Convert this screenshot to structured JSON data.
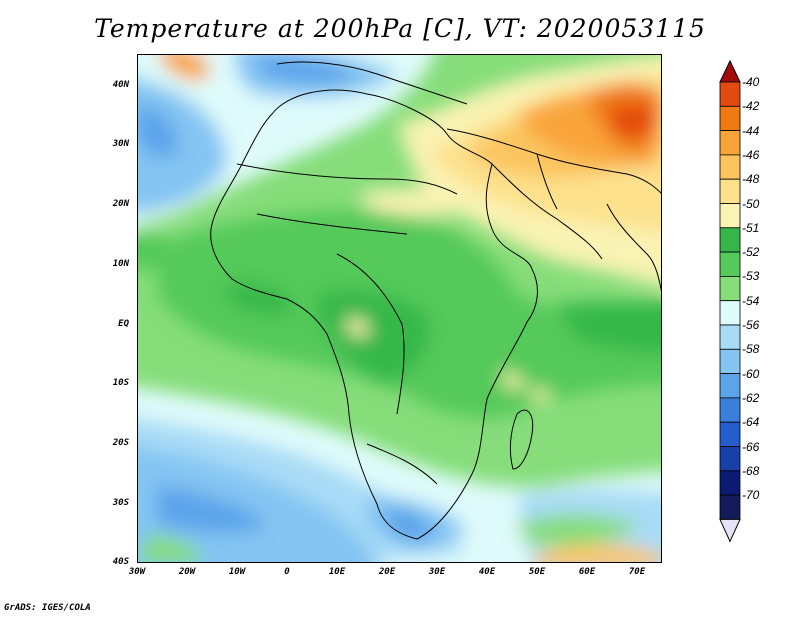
{
  "title": "Temperature at 200hPa [C], VT: 2020053115",
  "footer": "GrADS: IGES/COLA",
  "map": {
    "projection": "lat-lon",
    "lon_range": [
      -30,
      75
    ],
    "lat_range": [
      -40,
      45
    ],
    "variable": "Temperature at 200hPa",
    "units": "C"
  },
  "axes": {
    "x_ticks": [
      "30W",
      "20W",
      "10W",
      "0",
      "10E",
      "20E",
      "30E",
      "40E",
      "50E",
      "60E",
      "70E"
    ],
    "y_ticks": [
      "40N",
      "30N",
      "20N",
      "10N",
      "EQ",
      "10S",
      "20S",
      "30S",
      "40S"
    ]
  },
  "colorbar": {
    "labels": [
      "-40",
      "-42",
      "-44",
      "-46",
      "-48",
      "-50",
      "-51",
      "-52",
      "-53",
      "-54",
      "-56",
      "-58",
      "-60",
      "-62",
      "-64",
      "-66",
      "-68",
      "-70"
    ],
    "colors": [
      "#a50a0a",
      "#e34a0f",
      "#f07a12",
      "#f9a43a",
      "#fbc45e",
      "#fde18d",
      "#f9f3b4",
      "#34b748",
      "#55c95a",
      "#86dd7a",
      "#dffbfb",
      "#a8dbf6",
      "#84c5f3",
      "#5ca4ea",
      "#3a80db",
      "#235ecc",
      "#1740a8",
      "#0c1a74",
      "#141b5a"
    ],
    "arrow_top_color": "#a50a0a",
    "arrow_bottom_color": "#e6e3f7"
  }
}
